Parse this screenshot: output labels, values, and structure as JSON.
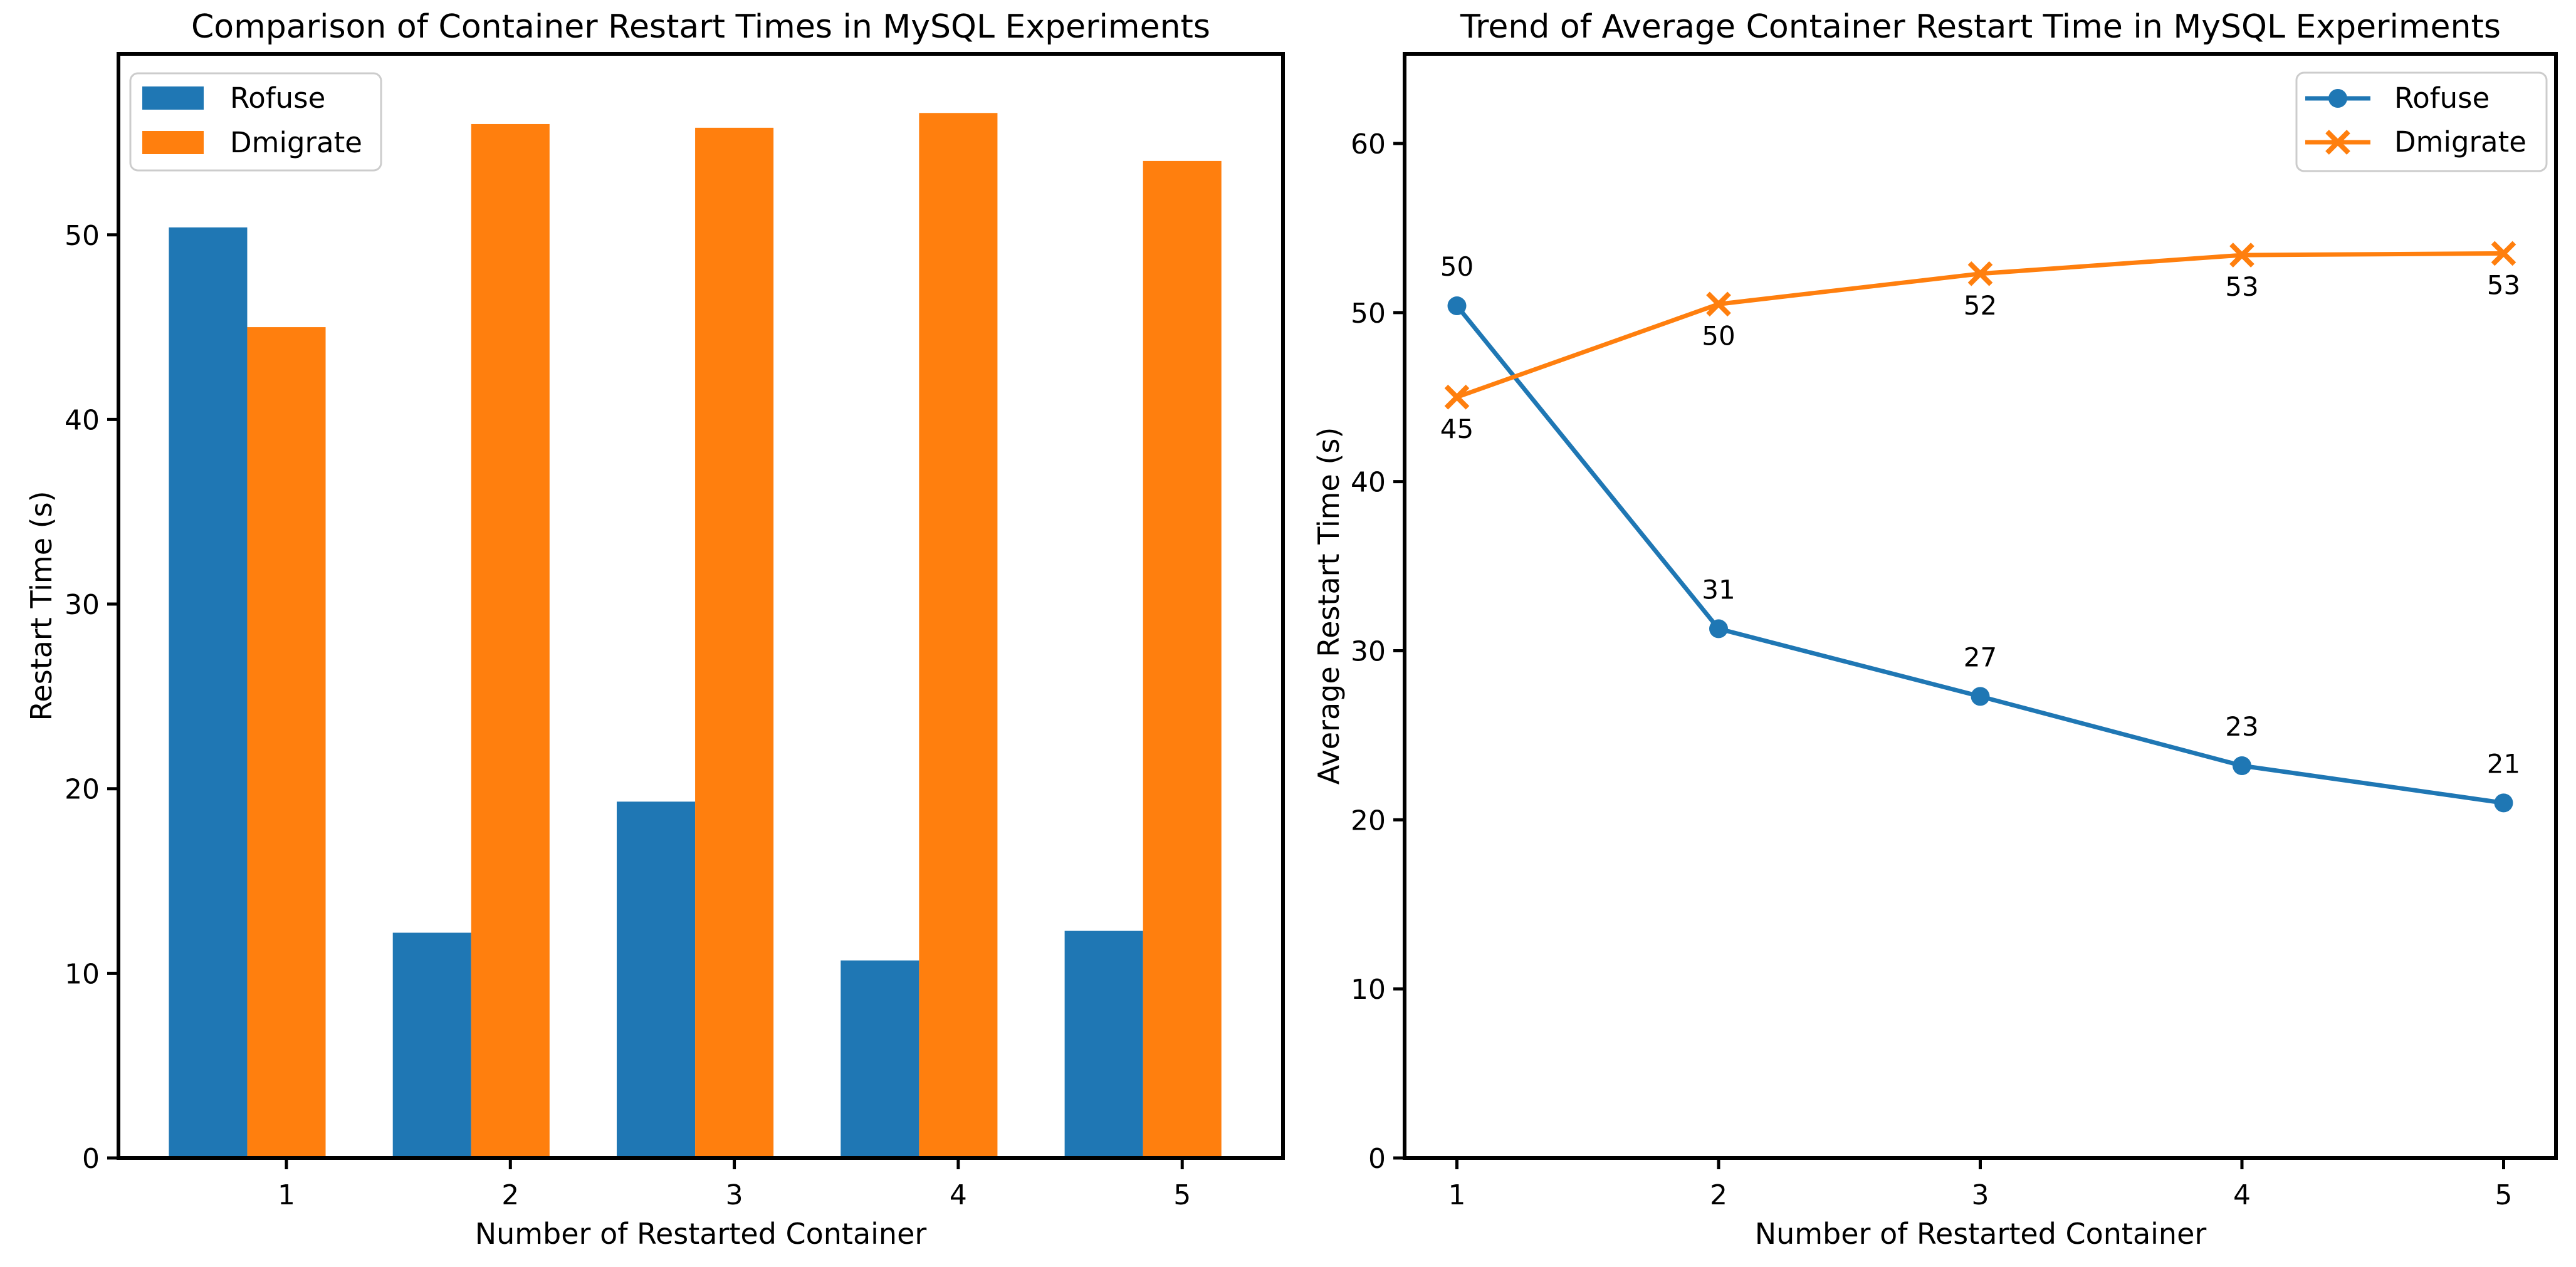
{
  "figure": {
    "background": "#ffffff",
    "text_color": "#000000",
    "palette": {
      "blue": "#1f77b4",
      "orange": "#ff7f0e"
    }
  },
  "chart_data": [
    {
      "type": "bar",
      "title": "Comparison of Container Restart Times in MySQL Experiments",
      "xlabel": "Number of Restarted Container",
      "ylabel": "Restart Time (s)",
      "categories": [
        1,
        2,
        3,
        4,
        5
      ],
      "series": [
        {
          "name": "Rofuse",
          "color": "#1f77b4",
          "values": [
            50.4,
            12.2,
            19.3,
            10.7,
            12.3
          ]
        },
        {
          "name": "Dmigrate",
          "color": "#ff7f0e",
          "values": [
            45.0,
            56.0,
            55.8,
            56.6,
            54.0
          ]
        }
      ],
      "bar_width": 0.35,
      "xlim": [
        0.25,
        5.45
      ],
      "ylim": [
        0,
        59.8
      ],
      "xticks": [
        1,
        2,
        3,
        4,
        5
      ],
      "yticks": [
        0,
        10,
        20,
        30,
        40,
        50
      ],
      "grid": false,
      "legend": {
        "position": "upper-left",
        "labels": [
          "Rofuse",
          "Dmigrate"
        ]
      }
    },
    {
      "type": "line",
      "title": "Trend of Average Container Restart Time in MySQL Experiments",
      "xlabel": "Number of Restarted Container",
      "ylabel": "Average Restart Time (s)",
      "x": [
        1,
        2,
        3,
        4,
        5
      ],
      "series": [
        {
          "name": "Rofuse",
          "color": "#1f77b4",
          "marker": "circle",
          "values": [
            50.4,
            31.3,
            27.3,
            23.2,
            21.0
          ],
          "point_labels": [
            "50",
            "31",
            "27",
            "23",
            "21"
          ],
          "label_side": "above"
        },
        {
          "name": "Dmigrate",
          "color": "#ff7f0e",
          "marker": "x",
          "values": [
            45.0,
            50.5,
            52.3,
            53.4,
            53.5
          ],
          "point_labels": [
            "45",
            "50",
            "52",
            "53",
            "53"
          ],
          "label_side": "below"
        }
      ],
      "xlim": [
        0.8,
        5.2
      ],
      "ylim": [
        0,
        65.3
      ],
      "xticks": [
        1,
        2,
        3,
        4,
        5
      ],
      "yticks": [
        0,
        10,
        20,
        30,
        40,
        50,
        60
      ],
      "grid": false,
      "legend": {
        "position": "upper-right",
        "labels": [
          "Rofuse",
          "Dmigrate"
        ]
      }
    }
  ]
}
